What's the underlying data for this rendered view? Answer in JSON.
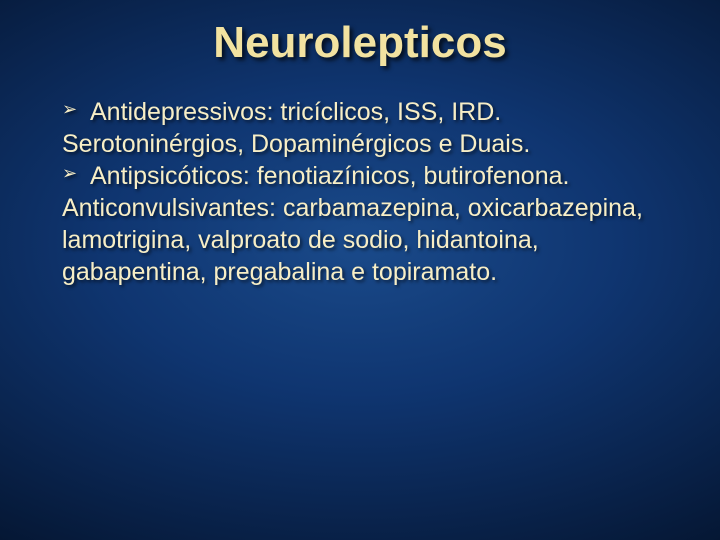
{
  "slide": {
    "title": "Neurolepticos",
    "title_color": "#f2e2a0",
    "title_fontsize": 44,
    "body_color": "#f7eec6",
    "body_fontsize": 25,
    "bullet_color": "#f7eec6",
    "lines": [
      {
        "type": "bullet",
        "text": "Antidepressivos: tricíclicos, ISS, IRD."
      },
      {
        "type": "plain-noindent",
        "text": "Serotoninérgios, Dopaminérgicos e Duais."
      },
      {
        "type": "bullet",
        "text": "Antipsicóticos: fenotiazínicos, butirofenona."
      },
      {
        "type": "plain-noindent",
        "text": "Anticonvulsivantes: carbamazepina, oxicarbazepina, lamotrigina, valproato de sodio, hidantoina, gabapentina, pregabalina e topiramato."
      }
    ]
  }
}
